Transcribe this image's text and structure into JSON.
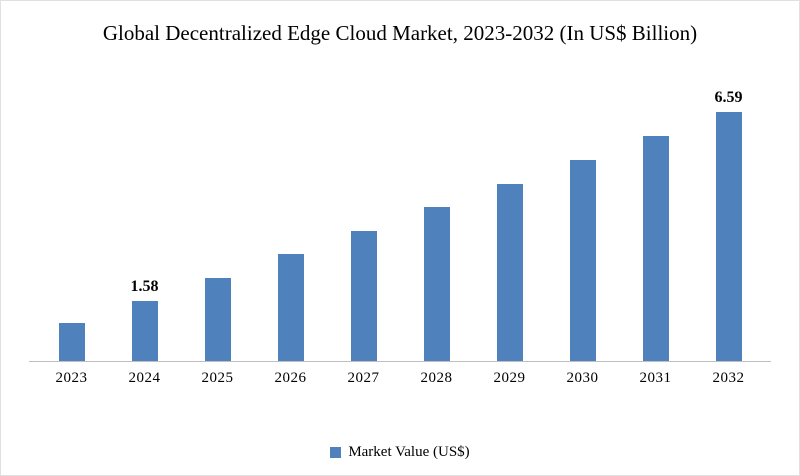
{
  "chart_data": {
    "type": "bar",
    "title": "Global Decentralized Edge Cloud Market, 2023-2032 (In US$ Billion)",
    "categories": [
      "2023",
      "2024",
      "2025",
      "2026",
      "2027",
      "2028",
      "2029",
      "2030",
      "2031",
      "2032"
    ],
    "values": [
      1.0,
      1.58,
      2.2,
      2.83,
      3.45,
      4.08,
      4.7,
      5.33,
      5.96,
      6.59
    ],
    "point_labels": [
      null,
      "1.58",
      null,
      null,
      null,
      null,
      null,
      null,
      null,
      "6.59"
    ],
    "series_name": "Market Value (US$)",
    "xlabel": "",
    "ylabel": "",
    "ylim": [
      0,
      7.5
    ],
    "grid": false,
    "legend_position": "bottom",
    "bar_color": "#4F81BD"
  },
  "legend": {
    "label": "Market Value (US$)"
  }
}
